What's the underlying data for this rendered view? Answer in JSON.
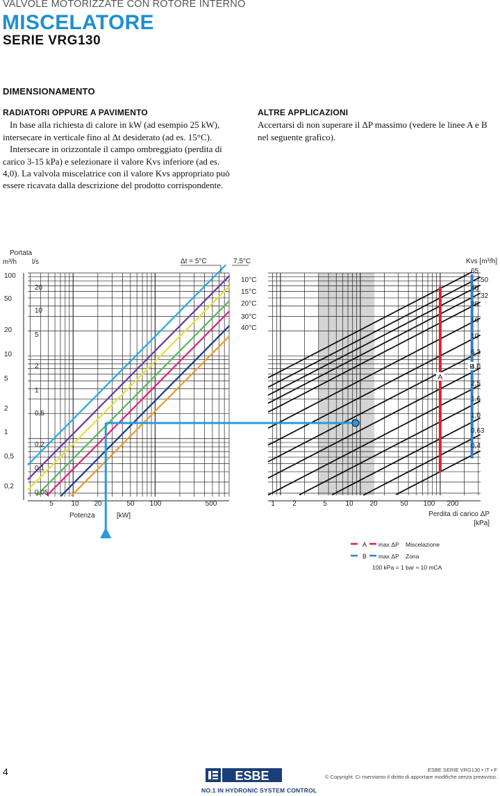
{
  "header": {
    "supertitle": "VALVOLE MOTORIZZATE CON ROTORE INTERNO",
    "title": "MISCELATORE",
    "subtitle": "SERIE VRG130"
  },
  "section_title": "DIMENSIONAMENTO",
  "left_column": {
    "heading": "RADIATORI OPPURE A PAVIMENTO",
    "lines": [
      "In base alla richiesta di calore in kW (ad esempio 25 kW),",
      "intersecare in verticale fino al Δt desiderato (ad es. 15°C).",
      "Intersecare in orizzontale il campo ombreggiato (perdita di",
      "carico 3-15 kPa) e selezionare il valore Kvs inferiore (ad es.",
      "4,0). La valvola miscelatrice con il valore Kvs appropriato può",
      "essere ricavata dalla descrizione del prodotto corrispondente."
    ]
  },
  "right_column": {
    "heading": "ALTRE APPLICAZIONI",
    "lines": [
      "Accertarsi di non superare il ΔP massimo (vedere le linee A e B",
      "nel seguente grafico)."
    ]
  },
  "chart_data": {
    "type": "line",
    "left_panel": {
      "y_title_1": "Portata",
      "y_title_m3h": "m³/h",
      "y_title_ls": "l/s",
      "ticks_m3h": [
        "100",
        "50",
        "20",
        "10",
        "5",
        "2",
        "1",
        "0,5",
        "0,2"
      ],
      "ticks_ls": [
        "20",
        "10",
        "5",
        "2",
        "1",
        "0,5",
        "0,2",
        "0,1",
        "0,05"
      ],
      "x_ticks": [
        "5",
        "10",
        "20",
        "50",
        "100",
        "500"
      ],
      "x_label_1": "Potenza",
      "x_label_2": "[kW]",
      "delta_t_label": "Δt = 5°C",
      "delta_t_right_label": "7,5°C",
      "series": [
        {
          "name": "Δt = 5°C",
          "color": "#29abe2"
        },
        {
          "name": "7,5°C",
          "color": "#6a3d9a"
        },
        {
          "name": "10°C",
          "color": "#e8e13a"
        },
        {
          "name": "15°C",
          "color": "#5cb85c"
        },
        {
          "name": "20°C",
          "color": "#e0267a"
        },
        {
          "name": "30°C",
          "color": "#1f3f8f"
        },
        {
          "name": "40°C",
          "color": "#f39a2b"
        }
      ],
      "series_labels": [
        "10°C",
        "15°C",
        "20°C",
        "30°C",
        "40°C"
      ],
      "example": {
        "power_kW": 25,
        "delta_t": "15°C"
      }
    },
    "right_panel": {
      "x_ticks": [
        "1",
        "2",
        "5",
        "10",
        "20",
        "50",
        "100",
        "200"
      ],
      "x_label_1": "Perdita di carico ΔP",
      "x_label_2": "[kPa]",
      "kvs_title": "Kvs [m³/h]",
      "kvs_values": [
        "65",
        "50",
        "40",
        "32",
        "25",
        "16",
        "10",
        "6,3",
        "4,0",
        "2,5",
        "1,6",
        "1,0",
        "0,63",
        "0,4"
      ],
      "shaded_range_kPa": [
        3,
        15
      ],
      "line_A": {
        "label": "A",
        "color": "#e0212e",
        "max_dp_kPa": 100
      },
      "line_B": {
        "label": "B",
        "color": "#2f80c8",
        "max_dp_kPa": 250
      },
      "example": {
        "kvs": "4,0",
        "dp_kPa": 11
      }
    }
  },
  "legend": {
    "a_label": "A",
    "a_text": "max ΔP",
    "a_desc": "Miscelazione",
    "b_label": "B",
    "b_text": "max ΔP",
    "b_desc": "Zona",
    "conversion": "100 kPa = 1 bar ≈ 10 mCA",
    "color_a": "#e0212e",
    "color_b": "#2f80c8"
  },
  "footer": {
    "page_number": "4",
    "logo_text": "ESBE",
    "tagline": "NO.1 IN HYDRONIC SYSTEM CONTROL",
    "series_ref": "ESBE SERIE VRG130 • IT • F",
    "copyright": "© Copyright. Ci riserviamo il diritto di apportare modifiche senza preavviso."
  },
  "colors": {
    "brand_blue": "#1e8fd2",
    "example_blue": "#2a9ad8",
    "shade": "#d4d4d4"
  }
}
